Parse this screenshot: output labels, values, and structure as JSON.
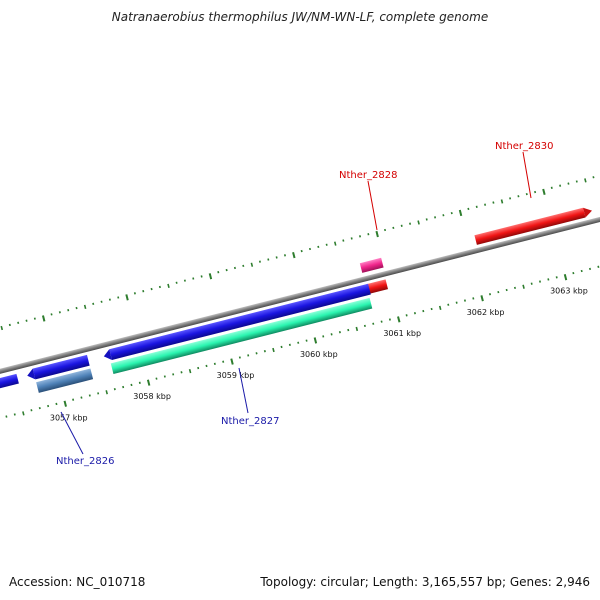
{
  "title": "Natranaerobius thermophilus JW/NM-WN-LF, complete genome",
  "footer": {
    "accession": "Accession: NC_010718",
    "summary": "Topology: circular; Length: 3,165,557 bp; Genes: 2,946"
  },
  "colors": {
    "backbone": "#7f7f7f",
    "tick": "#2e7d2e",
    "blue": "#1a14e0",
    "aqua": "#2af5b0",
    "steel": "#4f82b8",
    "red": "#f01414",
    "pink": "#f0268c",
    "labelBlue": "#1a1aa8",
    "labelRed": "#d40000"
  },
  "scale": {
    "kbp_labels": [
      "3057 kbp",
      "3058 kbp",
      "3059 kbp",
      "3060 kbp",
      "3061 kbp",
      "3062 kbp",
      "3063 kbp"
    ],
    "major_kbp": [
      3057,
      3058,
      3059,
      3060,
      3061,
      3062,
      3063
    ]
  },
  "genes": [
    {
      "name": "Nther_2826",
      "color": "labelBlue"
    },
    {
      "name": "Nther_2827",
      "color": "labelBlue"
    },
    {
      "name": "Nther_2828",
      "color": "labelRed"
    },
    {
      "name": "Nther_2830",
      "color": "labelRed"
    }
  ]
}
